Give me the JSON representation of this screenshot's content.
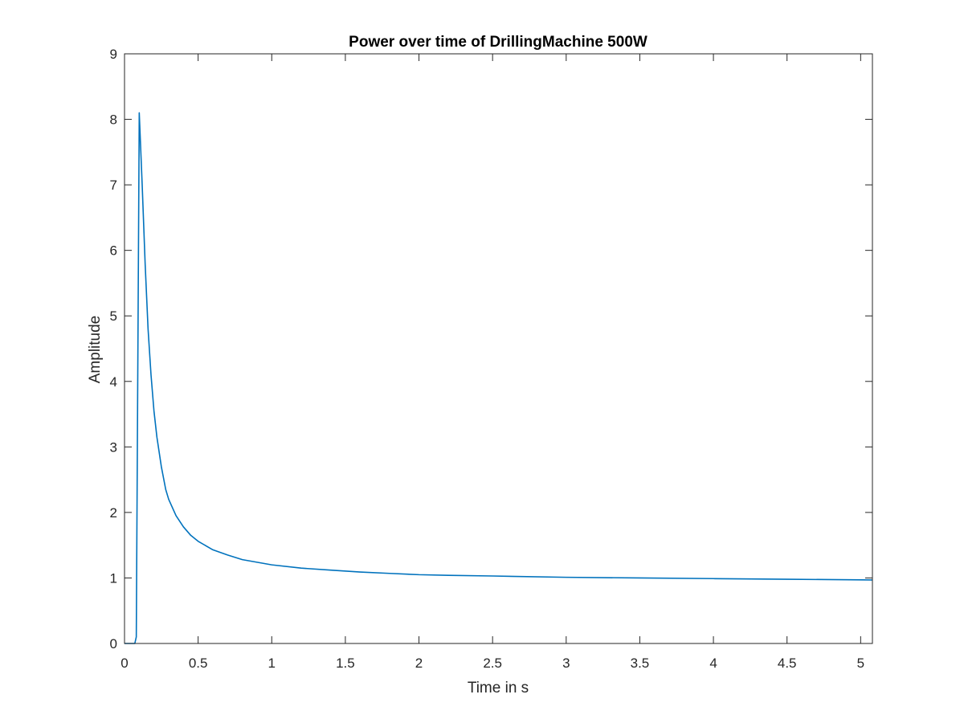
{
  "chart_data": {
    "type": "line",
    "title": "Power over time of DrillingMachine 500W",
    "xlabel": "Time in s",
    "ylabel": "Amplitude",
    "xlim": [
      0,
      5.08
    ],
    "ylim": [
      0,
      9
    ],
    "xticks": [
      0,
      0.5,
      1,
      1.5,
      2,
      2.5,
      3,
      3.5,
      4,
      4.5,
      5
    ],
    "xtick_labels": [
      "0",
      "0.5",
      "1",
      "1.5",
      "2",
      "2.5",
      "3",
      "3.5",
      "4",
      "4.5",
      "5"
    ],
    "yticks": [
      0,
      1,
      2,
      3,
      4,
      5,
      6,
      7,
      8,
      9
    ],
    "ytick_labels": [
      "0",
      "1",
      "2",
      "3",
      "4",
      "5",
      "6",
      "7",
      "8",
      "9"
    ],
    "grid": false,
    "box": true,
    "line_color": "#0072BD",
    "series": [
      {
        "x": [
          0,
          0.07,
          0.08,
          0.1,
          0.12,
          0.14,
          0.16,
          0.18,
          0.2,
          0.22,
          0.25,
          0.28,
          0.3,
          0.35,
          0.4,
          0.45,
          0.5,
          0.6,
          0.7,
          0.8,
          0.9,
          1.0,
          1.2,
          1.4,
          1.6,
          1.8,
          2.0,
          2.2,
          2.5,
          3.0,
          3.5,
          4.0,
          4.5,
          5.08
        ],
        "y": [
          0,
          0,
          0.1,
          8.1,
          7.0,
          5.8,
          4.8,
          4.1,
          3.55,
          3.15,
          2.7,
          2.35,
          2.2,
          1.95,
          1.78,
          1.65,
          1.56,
          1.43,
          1.35,
          1.28,
          1.24,
          1.2,
          1.15,
          1.12,
          1.09,
          1.07,
          1.05,
          1.04,
          1.03,
          1.01,
          1.0,
          0.99,
          0.98,
          0.97
        ]
      }
    ]
  }
}
